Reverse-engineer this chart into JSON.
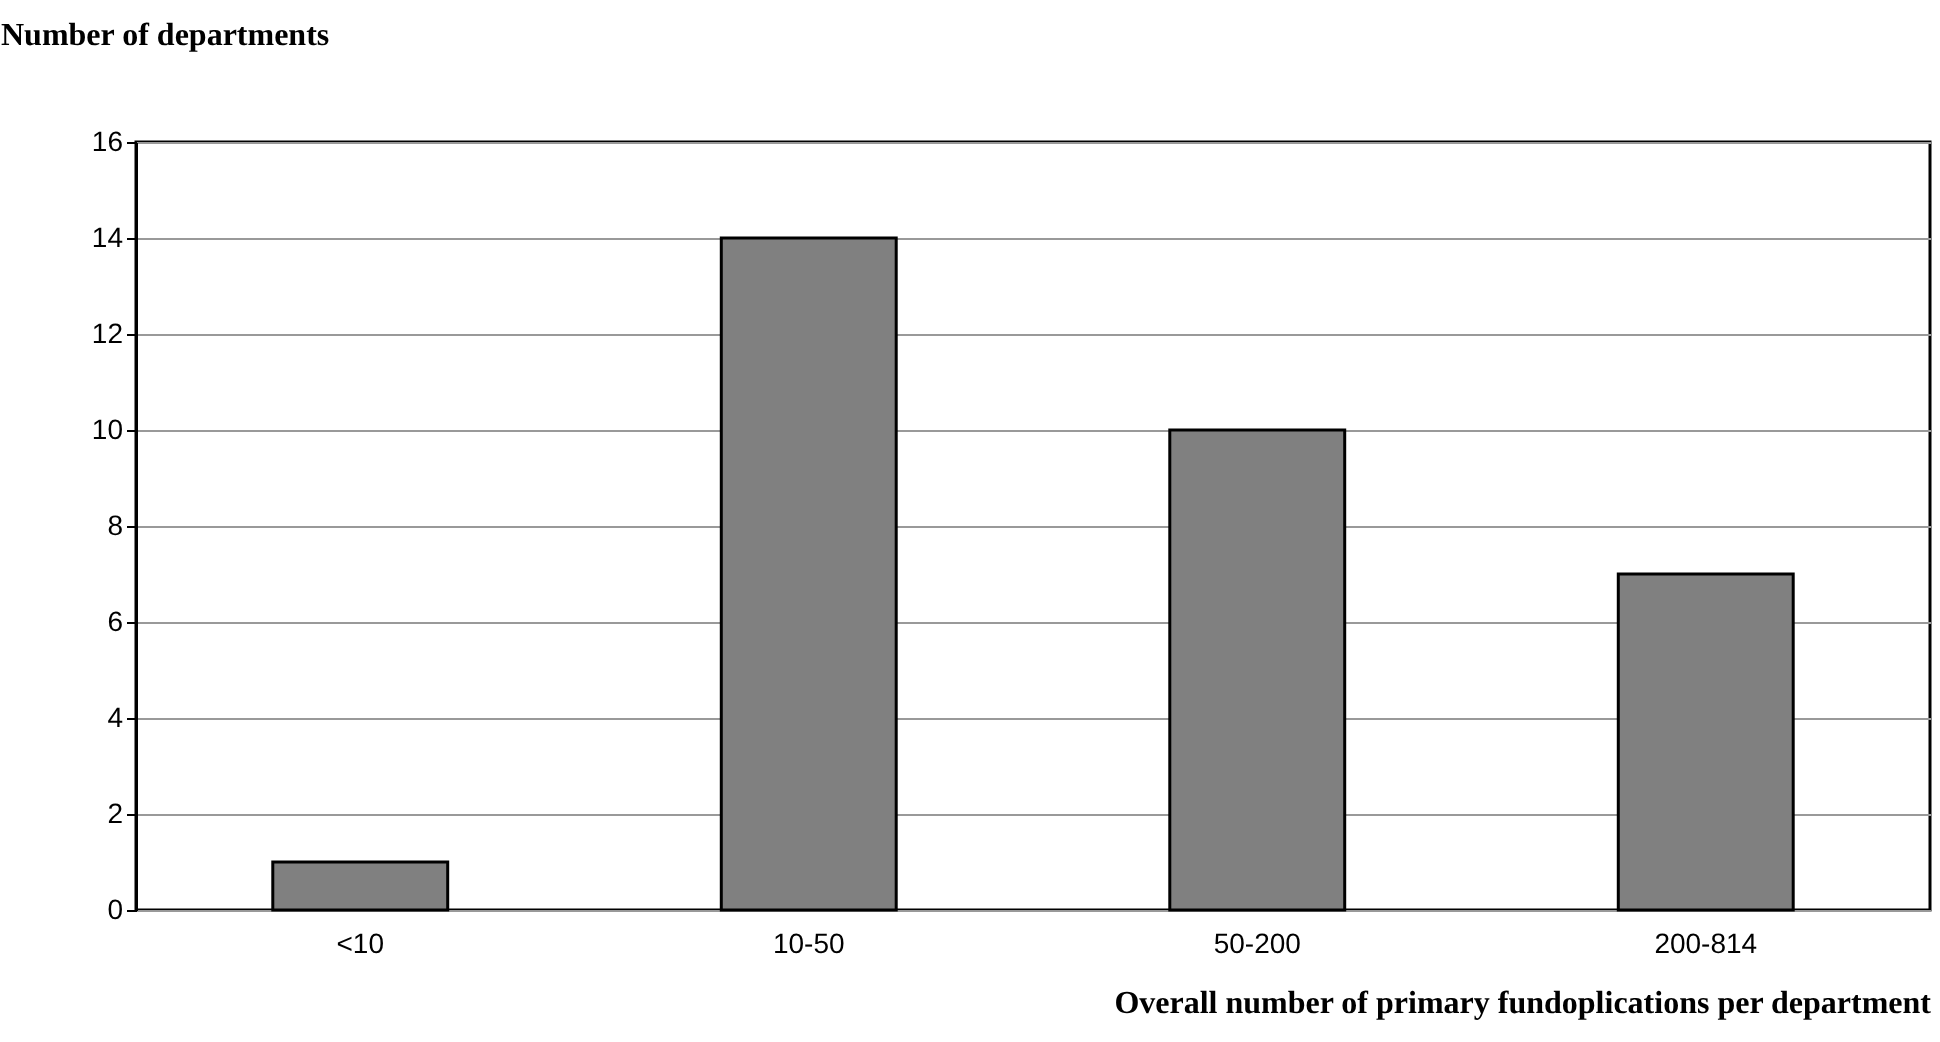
{
  "chart_data": {
    "type": "bar",
    "xlabel": "Overall number of primary fundoplications per department",
    "ylabel": "Number of departments",
    "categories": [
      "<10",
      "10-50",
      "50-200",
      "200-814"
    ],
    "values": [
      1,
      14,
      10,
      7
    ],
    "color": "#808080",
    "ylim": [
      0,
      16
    ],
    "yticks": [
      0,
      2,
      4,
      6,
      8,
      10,
      12,
      14,
      16
    ],
    "grid": "y"
  }
}
